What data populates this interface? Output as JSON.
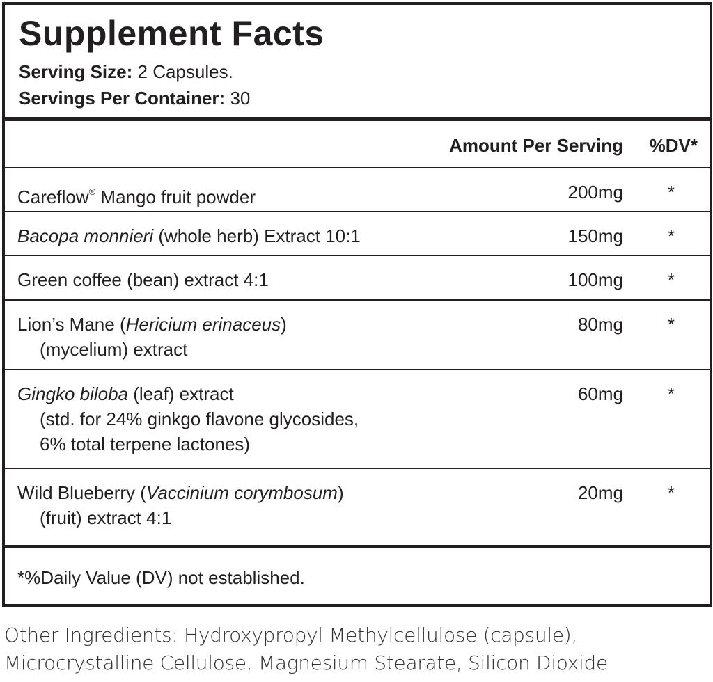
{
  "header": {
    "title": "Supplement Facts",
    "serving_size": {
      "label": "Serving Size:",
      "value": "2 Capsules."
    },
    "servings_per_container": {
      "label": "Servings Per Container:",
      "value": "30"
    }
  },
  "table": {
    "columns": [
      "Amount Per Serving",
      "%DV*"
    ],
    "rows": [
      {
        "name": [
          [
            {
              "text": "Careflow"
            },
            {
              "text": "®",
              "sup": true
            },
            {
              "text": " Mango fruit powder"
            }
          ]
        ],
        "amount": "200mg",
        "dv": "*"
      },
      {
        "name": [
          [
            {
              "text": "Bacopa monnieri",
              "italic": true
            },
            {
              "text": " (whole herb) Extract 10:1"
            }
          ]
        ],
        "amount": "150mg",
        "dv": "*"
      },
      {
        "name": [
          [
            {
              "text": "Green coffee (bean) extract 4:1"
            }
          ]
        ],
        "amount": "100mg",
        "dv": "*"
      },
      {
        "name": [
          [
            {
              "text": "Lion’s Mane ("
            },
            {
              "text": "Hericium erinaceus",
              "italic": true
            },
            {
              "text": ")"
            }
          ],
          [
            {
              "text": "(mycelium) extract"
            }
          ]
        ],
        "amount": "80mg",
        "dv": "*"
      },
      {
        "name": [
          [
            {
              "text": "Gingko biloba",
              "italic": true
            },
            {
              "text": " (leaf) extract"
            }
          ],
          [
            {
              "text": "(std. for 24% ginkgo flavone glycosides,"
            }
          ],
          [
            {
              "text": "6% total terpene lactones)"
            }
          ]
        ],
        "amount": "60mg",
        "dv": "*"
      },
      {
        "name": [
          [
            {
              "text": "Wild Blueberry ("
            },
            {
              "text": "Vaccinium corymbosum",
              "italic": true
            },
            {
              "text": ")"
            }
          ],
          [
            {
              "text": "(fruit) extract 4:1"
            }
          ]
        ],
        "amount": "20mg",
        "dv": "*"
      }
    ],
    "footnote": "*%Daily Value (DV) not established."
  },
  "other_ingredients": [
    "Other Ingredients: Hydroxypropyl Methylcellulose (capsule),",
    "Microcrystalline Cellulose, Magnesium Stearate, Silicon Dioxide"
  ]
}
